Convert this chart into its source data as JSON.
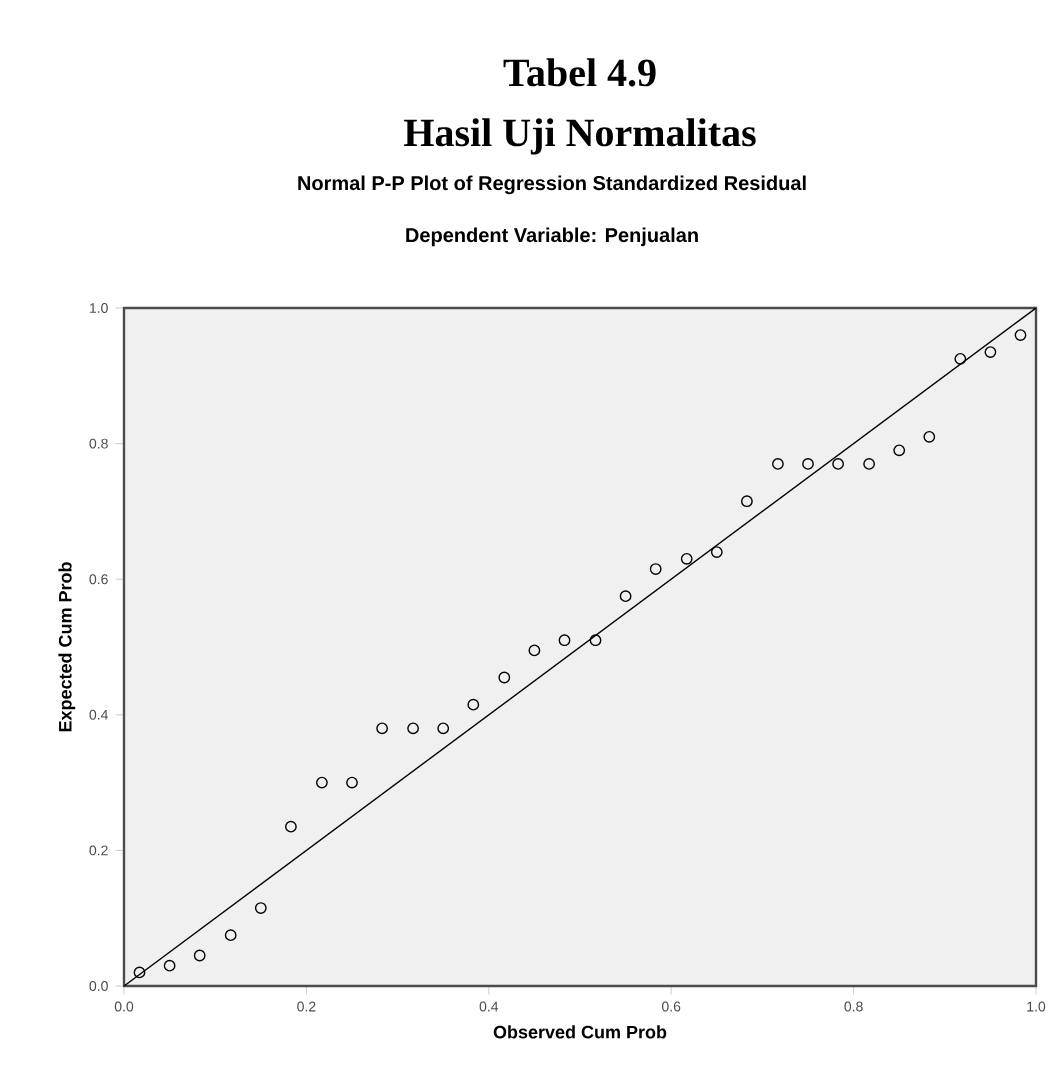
{
  "chart_data": {
    "type": "scatter",
    "title": "Tabel 4.9",
    "subtitle": "Hasil Uji Normalitas",
    "annotations": [
      "Normal P-P Plot of Regression Standardized Residual",
      "Dependent Variable: Penjualan"
    ],
    "xlabel": "Observed Cum Prob",
    "ylabel": "Expected Cum Prob",
    "x": [
      0.017,
      0.05,
      0.083,
      0.117,
      0.15,
      0.183,
      0.217,
      0.25,
      0.283,
      0.317,
      0.35,
      0.383,
      0.417,
      0.45,
      0.483,
      0.517,
      0.55,
      0.583,
      0.617,
      0.65,
      0.683,
      0.717,
      0.75,
      0.783,
      0.817,
      0.85,
      0.883,
      0.917,
      0.95,
      0.983
    ],
    "series": [
      {
        "color": "#000000",
        "marker": "circle",
        "values": [
          0.02,
          0.03,
          0.045,
          0.075,
          0.115,
          0.235,
          0.3,
          0.3,
          0.38,
          0.38,
          0.38,
          0.415,
          0.455,
          0.495,
          0.51,
          0.51,
          0.575,
          0.615,
          0.63,
          0.64,
          0.715,
          0.77,
          0.77,
          0.77,
          0.77,
          0.79,
          0.81,
          0.925,
          0.935,
          0.96
        ]
      },
      {
        "type": "line",
        "color": "#000000",
        "marker": "none",
        "line_style": "solid",
        "x": [
          0,
          1
        ],
        "values": [
          0,
          1
        ]
      }
    ],
    "xlim": [
      0,
      1
    ],
    "ylim": [
      0,
      1
    ],
    "xticks": [
      {
        "value": 0,
        "label": "0.0"
      },
      {
        "value": 0.2,
        "label": "0.2"
      },
      {
        "value": 0.4,
        "label": "0.4"
      },
      {
        "value": 0.6,
        "label": "0.6"
      },
      {
        "value": 0.8,
        "label": "0.8"
      },
      {
        "value": 1,
        "label": "1.0"
      }
    ],
    "yticks": [
      {
        "value": 0,
        "label": "0.0"
      },
      {
        "value": 0.2,
        "label": "0.2"
      },
      {
        "value": 0.4,
        "label": "0.4"
      },
      {
        "value": 0.6,
        "label": "0.6"
      },
      {
        "value": 0.8,
        "label": "0.8"
      },
      {
        "value": 1,
        "label": "1.0"
      }
    ],
    "grid": false
  }
}
